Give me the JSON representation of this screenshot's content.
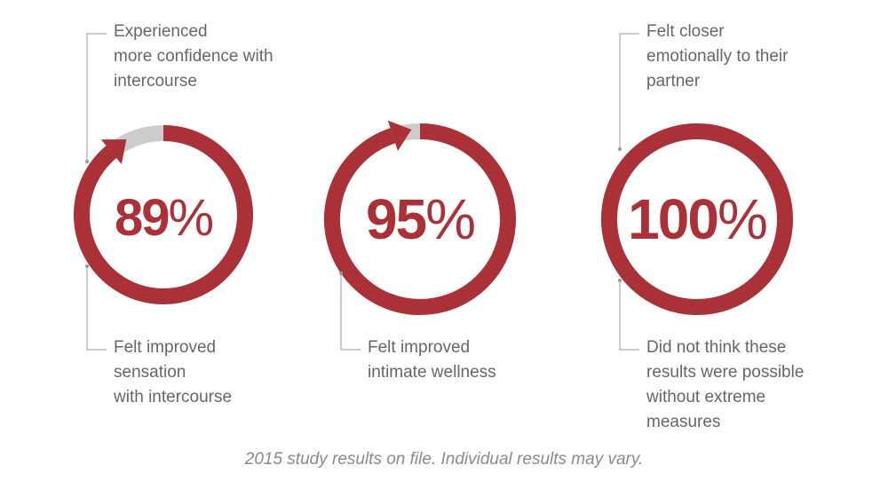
{
  "colors": {
    "accent": "#ab3138",
    "track": "#cccccc",
    "text": "#666666",
    "line": "#999999",
    "footnote": "#8a8a8a"
  },
  "stats": [
    {
      "value": 89,
      "value_label": "89",
      "unit": "%",
      "top_label": [
        "Experienced",
        "more confidence with",
        "intercourse"
      ],
      "bottom_label": [
        "Felt improved",
        "sensation",
        "with intercourse"
      ]
    },
    {
      "value": 95,
      "value_label": "95",
      "unit": "%",
      "top_label": [],
      "bottom_label": [
        "Felt improved",
        "intimate wellness"
      ]
    },
    {
      "value": 100,
      "value_label": "100",
      "unit": "%",
      "top_label": [
        "Felt closer",
        "emotionally to their",
        "partner"
      ],
      "bottom_label": [
        "Did not think these",
        "results were possible",
        "without extreme",
        "measures"
      ]
    }
  ],
  "footnote": "2015 study results on file. Individual results may vary."
}
